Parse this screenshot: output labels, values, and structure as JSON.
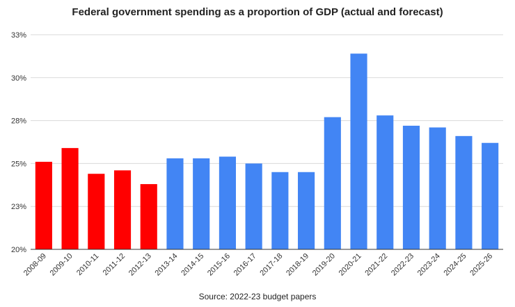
{
  "chart_data": {
    "type": "bar",
    "title": "Federal government spending as a proportion of GDP (actual and forecast)",
    "source": "Source: 2022-23 budget papers",
    "xlabel": "",
    "ylabel": "",
    "categories": [
      "2008-09",
      "2009-10",
      "2010-11",
      "2011-12",
      "2012-13",
      "2013-14",
      "2014-15",
      "2015-16",
      "2016-17",
      "2017-18",
      "2018-19",
      "2019-20",
      "2020-21",
      "2021-22",
      "2022-23",
      "2023-24",
      "2024-25",
      "2025-26"
    ],
    "values": [
      25.1,
      25.9,
      24.4,
      24.6,
      23.8,
      25.3,
      25.3,
      25.4,
      25.0,
      24.5,
      24.5,
      27.7,
      31.4,
      27.8,
      27.2,
      27.1,
      26.6,
      26.2
    ],
    "bar_colors": [
      "#ff0000",
      "#ff0000",
      "#ff0000",
      "#ff0000",
      "#ff0000",
      "#4285f4",
      "#4285f4",
      "#4285f4",
      "#4285f4",
      "#4285f4",
      "#4285f4",
      "#4285f4",
      "#4285f4",
      "#4285f4",
      "#4285f4",
      "#4285f4",
      "#4285f4",
      "#4285f4"
    ],
    "ylim": [
      20,
      32.5
    ],
    "y_ticks": [
      20,
      22.5,
      25,
      27.5,
      30,
      32.5
    ],
    "y_tick_labels": [
      "20%",
      "23%",
      "25%",
      "28%",
      "30%",
      "33%"
    ],
    "grid": true,
    "legend": "none"
  }
}
